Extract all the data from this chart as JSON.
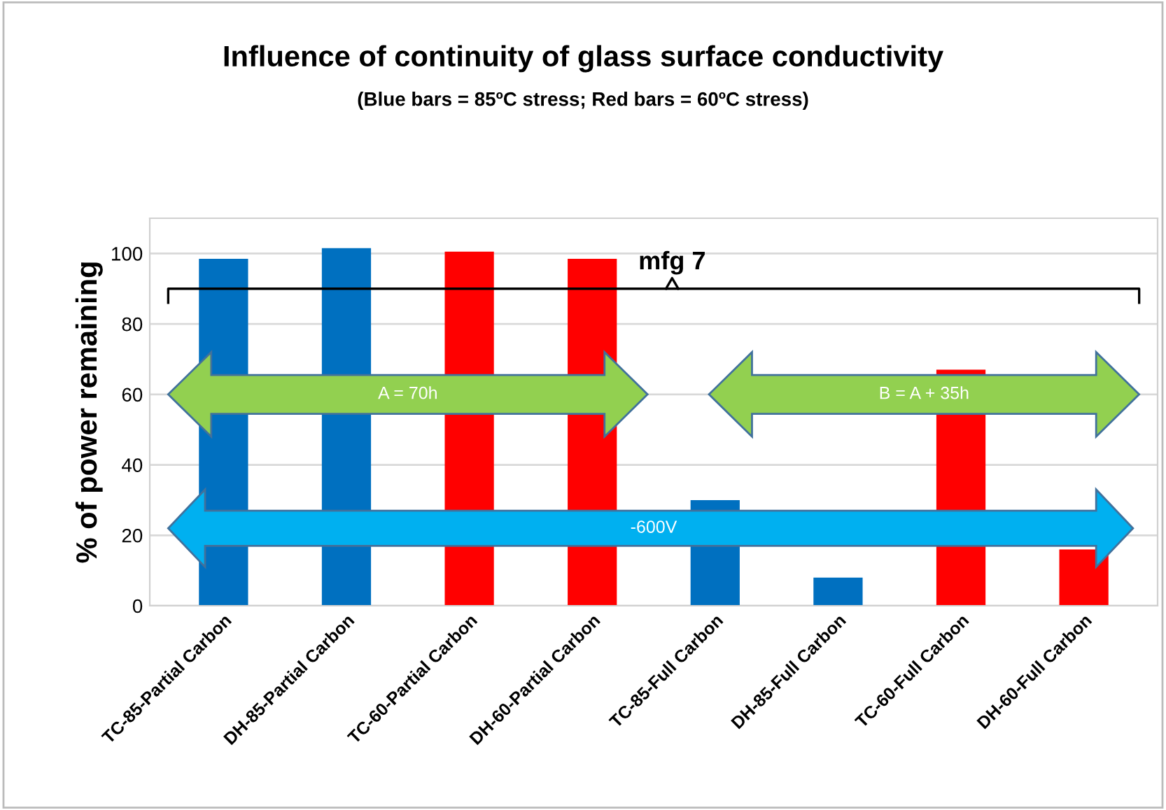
{
  "chart_data": {
    "type": "bar",
    "title": "Influence of continuity of glass surface conductivity",
    "subtitle": "(Blue bars = 85ºC stress; Red bars = 60ºC stress)",
    "ylabel": "% of power remaining",
    "categories": [
      "TC-85-Partial Carbon",
      "DH-85-Partial Carbon",
      "TC-60-Partial Carbon",
      "DH-60-Partial Carbon",
      "TC-85-Full Carbon",
      "DH-85-Full Carbon",
      "TC-60-Full Carbon",
      "DH-60-Full Carbon"
    ],
    "values": [
      98.5,
      101.5,
      100.5,
      98.5,
      30,
      8,
      67,
      16
    ],
    "colors": [
      "#0070c0",
      "#0070c0",
      "#ff0000",
      "#ff0000",
      "#0070c0",
      "#0070c0",
      "#ff0000",
      "#ff0000"
    ],
    "ylim": [
      0,
      110
    ],
    "yticks": [
      0,
      20,
      40,
      60,
      80,
      100
    ],
    "grid": "y",
    "annotations": [
      "mfg 7",
      "A = 70h",
      "B = A + 35h",
      "-600V"
    ]
  }
}
